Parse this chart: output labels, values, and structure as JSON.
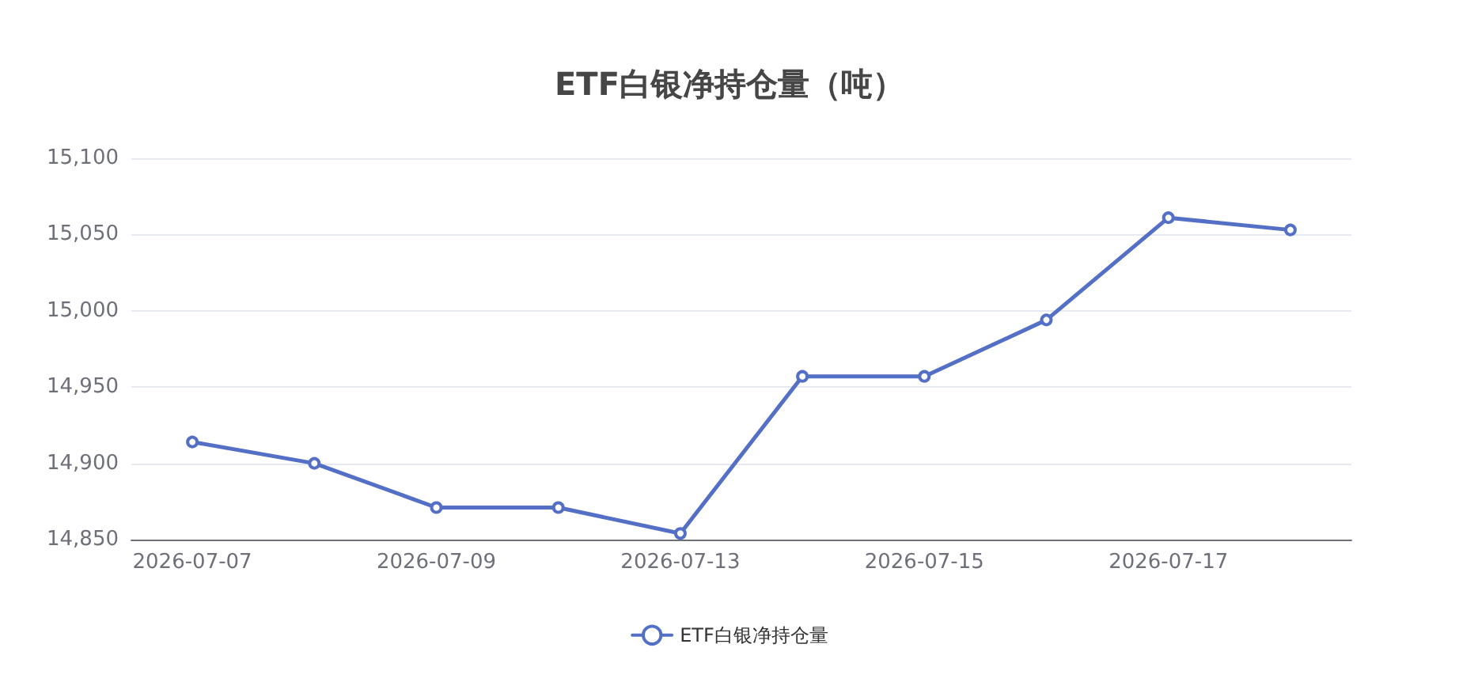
{
  "chart_data": {
    "type": "line",
    "title": "ETF白银净持仓量（吨）",
    "categories": [
      "2026-07-07",
      null,
      "2026-07-09",
      null,
      "2026-07-13",
      null,
      "2026-07-15",
      null,
      "2026-07-17",
      null
    ],
    "series": [
      {
        "name": "ETF白银净持仓量",
        "color": "#5470c6",
        "values": [
          14914,
          14900,
          14871,
          14871,
          14854,
          14957,
          14957,
          14994,
          15061,
          15053
        ]
      }
    ],
    "ylim": [
      14850,
      15100
    ],
    "yticks": [
      {
        "value": 14850,
        "label": "14,850"
      },
      {
        "value": 14900,
        "label": "14,900"
      },
      {
        "value": 14950,
        "label": "14,950"
      },
      {
        "value": 15000,
        "label": "15,000"
      },
      {
        "value": 15050,
        "label": "15,050"
      },
      {
        "value": 15100,
        "label": "15,100"
      }
    ],
    "grid": "y",
    "legend": "bottom",
    "marker": "circle",
    "line_style": "solid"
  }
}
